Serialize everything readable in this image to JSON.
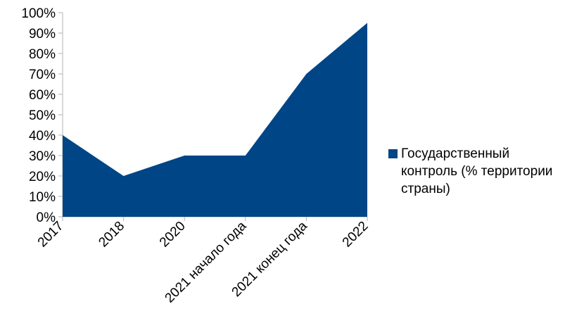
{
  "chart_data": {
    "type": "area",
    "categories": [
      "2017",
      "2018",
      "2020",
      "2021 начало года",
      "2021 конец года",
      "2022"
    ],
    "series": [
      {
        "name": "Государственный контроль (% территории страны)",
        "values": [
          40,
          20,
          30,
          30,
          70,
          95
        ],
        "color": "#004586"
      }
    ],
    "y_ticks": [
      "0%",
      "10%",
      "20%",
      "30%",
      "40%",
      "50%",
      "60%",
      "70%",
      "80%",
      "90%",
      "100%"
    ],
    "ylim": [
      0,
      100
    ],
    "grid": false,
    "legend_position": "right",
    "title": "",
    "xlabel": "",
    "ylabel": ""
  }
}
